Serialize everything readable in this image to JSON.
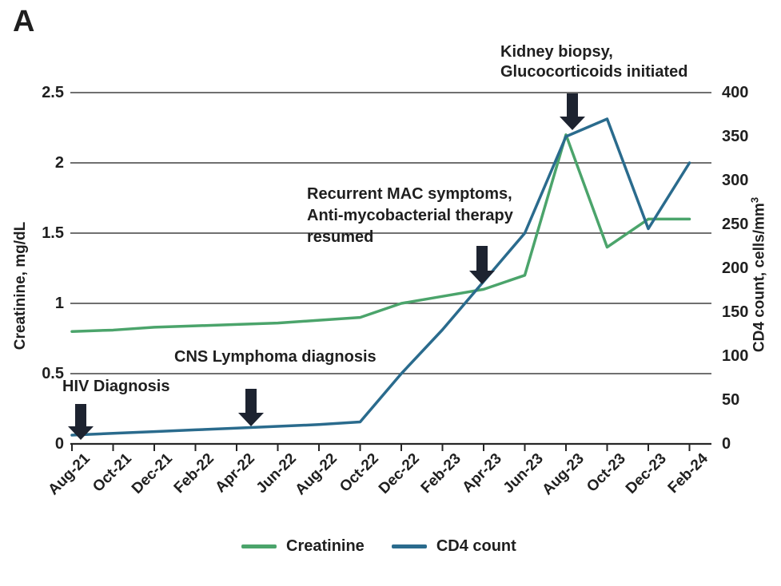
{
  "panel_label": "A",
  "colors": {
    "creatinine": "#4ba46b",
    "cd4": "#2a6b8d",
    "grid": "#404040",
    "axis": "#262626",
    "arrow": "#1d2330",
    "text": "#1f1f1f"
  },
  "chart_data": {
    "type": "line",
    "title": "",
    "x_tick_labels": [
      "Aug-21",
      "Oct-21",
      "Dec-21",
      "Feb-22",
      "Apr-22",
      "Jun-22",
      "Aug-22",
      "Oct-22",
      "Dec-22",
      "Feb-23",
      "Apr-23",
      "Jun-23",
      "Aug-23",
      "Oct-23",
      "Dec-23",
      "Feb-24"
    ],
    "left_axis": {
      "label": "Creatinine, mg/dL",
      "min": 0,
      "max": 2.5,
      "ticks": [
        0,
        0.5,
        1,
        1.5,
        2,
        2.5
      ],
      "tick_labels": [
        "0",
        "0.5",
        "1",
        "1.5",
        "2",
        "2.5"
      ]
    },
    "right_axis": {
      "label_text": "CD4 count, cells/mm",
      "label_sup": "3",
      "min": 0,
      "max": 400,
      "ticks": [
        0,
        50,
        100,
        150,
        200,
        250,
        300,
        350,
        400
      ],
      "tick_labels": [
        "0",
        "50",
        "100",
        "150",
        "200",
        "250",
        "300",
        "350",
        "400"
      ]
    },
    "grid": "horizontal at left-axis ticks",
    "legend_position": "bottom",
    "series": [
      {
        "name": "Creatinine",
        "axis": "left",
        "color": "#4ba46b",
        "values": [
          0.8,
          0.81,
          0.83,
          0.84,
          0.85,
          0.86,
          0.88,
          0.9,
          1.0,
          1.05,
          1.1,
          1.2,
          2.2,
          1.4,
          1.6,
          1.6
        ]
      },
      {
        "name": "CD4 count",
        "axis": "right",
        "color": "#2a6b8d",
        "values": [
          10,
          12,
          14,
          16,
          18,
          20,
          22,
          25,
          80,
          130,
          185,
          240,
          350,
          370,
          245,
          320
        ]
      }
    ],
    "annotations": [
      {
        "id": "hiv-diagnosis",
        "lines": [
          "HIV Diagnosis"
        ],
        "near_x": "Aug-21"
      },
      {
        "id": "cns-lymphoma",
        "lines": [
          "CNS Lymphoma diagnosis"
        ],
        "near_x": "Apr-22"
      },
      {
        "id": "mac-symptoms",
        "lines": [
          "Recurrent MAC symptoms,",
          "Anti-mycobacterial therapy",
          "resumed"
        ],
        "near_x": "Apr-23"
      },
      {
        "id": "kidney-biopsy",
        "lines": [
          "Kidney biopsy,",
          "Glucocorticoids initiated"
        ],
        "near_x": "Aug-23"
      }
    ]
  }
}
